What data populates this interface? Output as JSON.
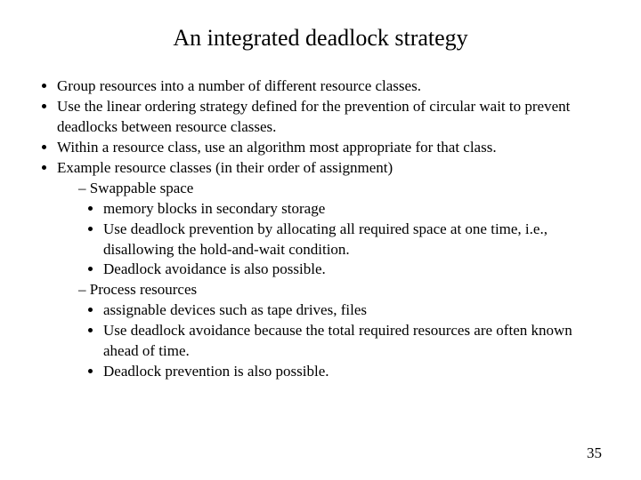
{
  "title": "An integrated deadlock strategy",
  "b1": "Group resources into a number of different resource classes.",
  "b2": "Use the linear ordering strategy defined for the prevention of circular wait to prevent deadlocks between resource classes.",
  "b3": "Within a resource class, use an algorithm most appropriate for that class.",
  "b4": "Example resource classes (in their order of assignment)",
  "b4a": "Swappable space",
  "b4a1": "memory blocks in secondary storage",
  "b4a2": "Use deadlock prevention by allocating all required space at one time, i.e., disallowing the hold-and-wait condition.",
  "b4a3": "Deadlock avoidance is also possible.",
  "b4b": "Process resources",
  "b4b1": "assignable devices such as tape drives, files",
  "b4b2": "Use deadlock avoidance because the total required resources are often known ahead of time.",
  "b4b3": "Deadlock prevention is also possible.",
  "pagenum": "35",
  "colors": {
    "background": "#ffffff",
    "text": "#000000"
  },
  "fontsizes": {
    "title": 26,
    "body": 17
  }
}
